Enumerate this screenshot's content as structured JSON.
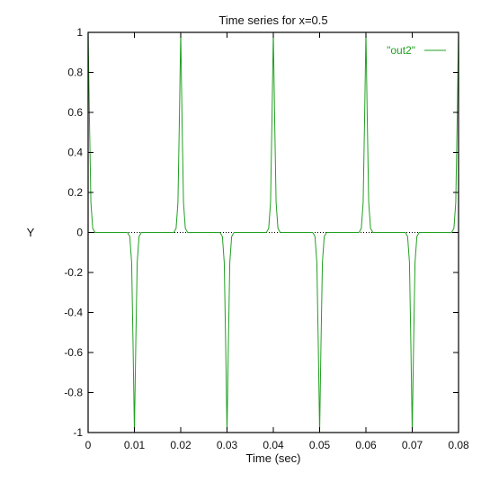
{
  "chart_data": {
    "type": "line",
    "title": "Time series for x=0.5",
    "xlabel": "Time (sec)",
    "ylabel": "Y",
    "xlim": [
      0,
      0.08
    ],
    "ylim": [
      -1,
      1
    ],
    "xticks": [
      "0",
      "0.01",
      "0.02",
      "0.03",
      "0.04",
      "0.05",
      "0.06",
      "0.07",
      "0.08"
    ],
    "yticks": [
      "1",
      "0.8",
      "0.6",
      "0.4",
      "0.2",
      "0",
      "-0.2",
      "-0.4",
      "-0.6",
      "-0.8",
      "-1"
    ],
    "legend": "top-right",
    "zero_line": true,
    "series": [
      {
        "name": "\"out2\"",
        "color": "#22a022",
        "x": [
          0,
          0.0003,
          0.0006,
          0.001,
          0.0015,
          0.0085,
          0.009,
          0.0094,
          0.0097,
          0.01,
          0.0103,
          0.0106,
          0.011,
          0.0115,
          0.0185,
          0.019,
          0.0194,
          0.0197,
          0.02,
          0.0203,
          0.0206,
          0.021,
          0.0215,
          0.0285,
          0.029,
          0.0294,
          0.0297,
          0.03,
          0.0303,
          0.0306,
          0.031,
          0.0315,
          0.0385,
          0.039,
          0.0394,
          0.0397,
          0.04,
          0.0403,
          0.0406,
          0.041,
          0.0415,
          0.0485,
          0.049,
          0.0494,
          0.0497,
          0.05,
          0.0503,
          0.0506,
          0.051,
          0.0515,
          0.0585,
          0.059,
          0.0594,
          0.0597,
          0.06,
          0.0603,
          0.0606,
          0.061,
          0.0615,
          0.0685,
          0.069,
          0.0694,
          0.0697,
          0.07,
          0.0703,
          0.0706,
          0.071,
          0.0715,
          0.0785,
          0.079,
          0.0794,
          0.0797,
          0.08
        ],
        "y": [
          1,
          0.55,
          0.15,
          0.02,
          0,
          0,
          -0.02,
          -0.15,
          -0.55,
          -1,
          -0.55,
          -0.15,
          -0.02,
          0,
          0,
          0.02,
          0.15,
          0.55,
          1,
          0.55,
          0.15,
          0.02,
          0,
          0,
          -0.02,
          -0.15,
          -0.55,
          -1,
          -0.55,
          -0.15,
          -0.02,
          0,
          0,
          0.02,
          0.15,
          0.55,
          1,
          0.55,
          0.15,
          0.02,
          0,
          0,
          -0.02,
          -0.15,
          -0.55,
          -1,
          -0.55,
          -0.15,
          -0.02,
          0,
          0,
          0.02,
          0.15,
          0.55,
          1,
          0.55,
          0.15,
          0.02,
          0,
          0,
          -0.02,
          -0.15,
          -0.55,
          -1,
          -0.55,
          -0.15,
          -0.02,
          0,
          0,
          0.02,
          0.15,
          0.55,
          1
        ]
      }
    ]
  }
}
